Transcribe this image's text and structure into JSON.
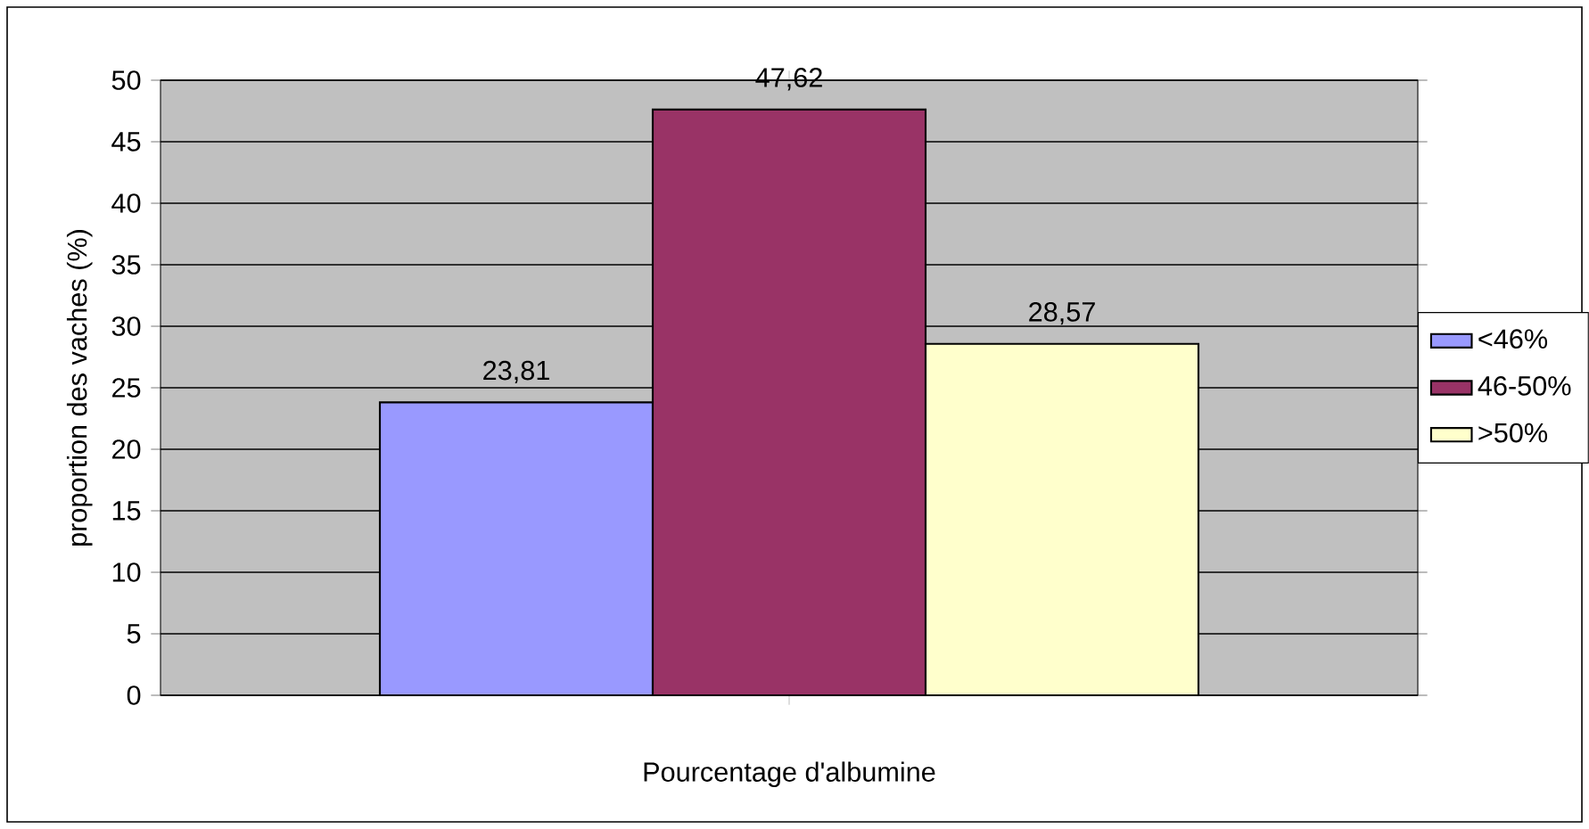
{
  "chart_data": {
    "type": "bar",
    "xlabel": "Pourcentage d'albumine",
    "ylabel": "proportion des vaches (%)",
    "categories": [
      null
    ],
    "series": [
      {
        "name": "<46%",
        "color": "#9999ff",
        "values": [
          23.81
        ],
        "value_labels": [
          "23,81"
        ]
      },
      {
        "name": "46-50%",
        "color": "#993366",
        "values": [
          47.62
        ],
        "value_labels": [
          "47,62"
        ]
      },
      {
        "name": ">50%",
        "color": "#ffffcc",
        "values": [
          28.57
        ],
        "value_labels": [
          "28,57"
        ]
      }
    ],
    "ylim": [
      0,
      50
    ],
    "yticks": [
      0,
      5,
      10,
      15,
      20,
      25,
      30,
      35,
      40,
      45,
      50
    ],
    "grid": "y",
    "legend": "right"
  }
}
